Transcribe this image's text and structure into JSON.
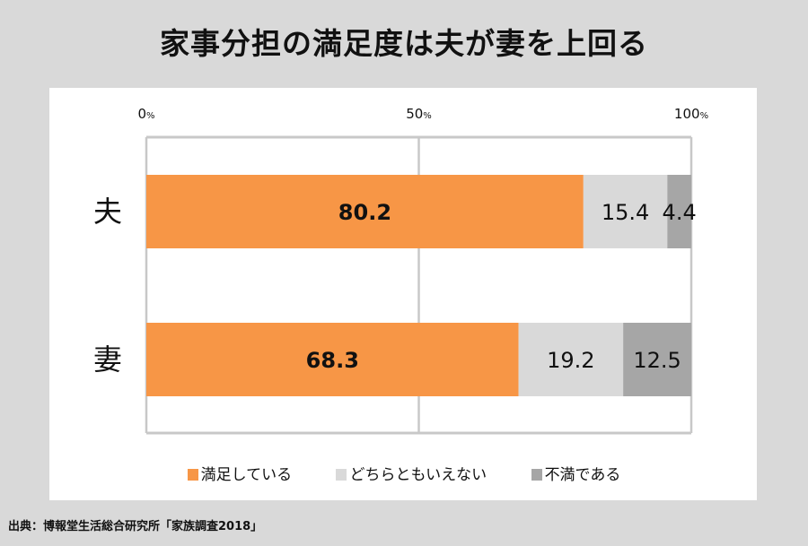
{
  "title": "家事分担の満足度は夫が妻を上回る",
  "chart_data": {
    "type": "bar",
    "orientation": "horizontal-stacked-100",
    "title": "家事分担の満足度は夫が妻を上回る",
    "categories": [
      "夫",
      "妻"
    ],
    "series": [
      {
        "name": "満足している",
        "values": [
          80.2,
          68.3
        ],
        "color": "#f79646"
      },
      {
        "name": "どちらともいえない",
        "values": [
          15.4,
          19.2
        ],
        "color": "#d9d9d9"
      },
      {
        "name": "不満である",
        "values": [
          4.4,
          12.5
        ],
        "color": "#a6a6a6"
      }
    ],
    "xticks": [
      {
        "value": 0,
        "num": "0",
        "unit": "%"
      },
      {
        "value": 50,
        "num": "50",
        "unit": "%"
      },
      {
        "value": 100,
        "num": "100",
        "unit": "%"
      }
    ],
    "xlim": [
      0,
      100
    ],
    "grid": true,
    "legend_position": "bottom"
  },
  "source": "出典：博報堂生活総合研究所「家族調査2018」"
}
